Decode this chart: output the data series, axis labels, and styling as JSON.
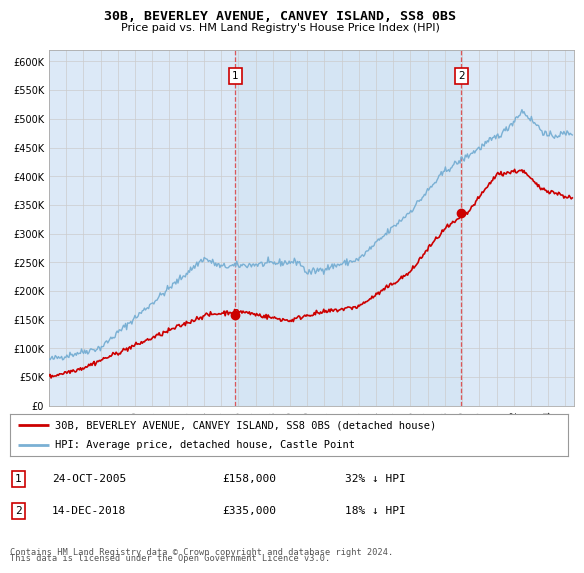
{
  "title": "30B, BEVERLEY AVENUE, CANVEY ISLAND, SS8 0BS",
  "subtitle": "Price paid vs. HM Land Registry's House Price Index (HPI)",
  "plot_bg_color": "#dce9f7",
  "ylabel_ticks": [
    "£0",
    "£50K",
    "£100K",
    "£150K",
    "£200K",
    "£250K",
    "£300K",
    "£350K",
    "£400K",
    "£450K",
    "£500K",
    "£550K",
    "£600K"
  ],
  "ytick_vals": [
    0,
    50000,
    100000,
    150000,
    200000,
    250000,
    300000,
    350000,
    400000,
    450000,
    500000,
    550000,
    600000
  ],
  "ylim": [
    0,
    620000
  ],
  "xlim_start": 1995.0,
  "xlim_end": 2025.5,
  "sale1_x": 2005.81,
  "sale1_y": 158000,
  "sale2_x": 2018.96,
  "sale2_y": 335000,
  "legend_line1": "30B, BEVERLEY AVENUE, CANVEY ISLAND, SS8 0BS (detached house)",
  "legend_line2": "HPI: Average price, detached house, Castle Point",
  "ann1_date": "24-OCT-2005",
  "ann1_price": "£158,000",
  "ann1_hpi": "32% ↓ HPI",
  "ann2_date": "14-DEC-2018",
  "ann2_price": "£335,000",
  "ann2_hpi": "18% ↓ HPI",
  "footer_line1": "Contains HM Land Registry data © Crown copyright and database right 2024.",
  "footer_line2": "This data is licensed under the Open Government Licence v3.0.",
  "hpi_color": "#7ab0d4",
  "sale_color": "#cc0000",
  "shade_color": "#c8dff0",
  "grid_color": "#cccccc"
}
